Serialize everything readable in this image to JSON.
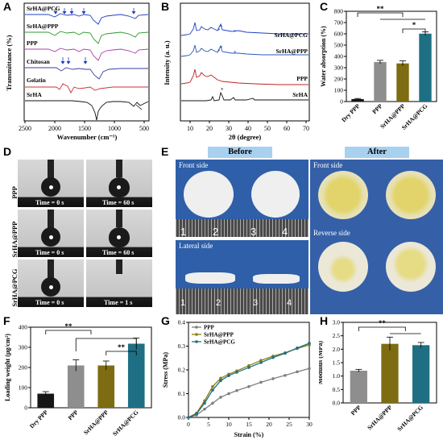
{
  "panels": {
    "A": {
      "label": "A"
    },
    "B": {
      "label": "B"
    },
    "C": {
      "label": "C"
    },
    "D": {
      "label": "D"
    },
    "E": {
      "label": "E"
    },
    "F": {
      "label": "F"
    },
    "G": {
      "label": "G"
    },
    "H": {
      "label": "H"
    }
  },
  "chart_data": [
    {
      "id": "A",
      "type": "line",
      "xlabel": "Wavenumber (cm⁻¹)",
      "ylabel": "Transmittance (%)",
      "x_ticks": [
        "2500",
        "2000",
        "1500",
        "1000",
        "500"
      ],
      "xlim": [
        2500,
        400
      ],
      "x_reversed": true,
      "series": [
        {
          "name": "SrHA@PCG",
          "color": "#1f3fbf"
        },
        {
          "name": "SrHA@PPP",
          "color": "#2a9a2a"
        },
        {
          "name": "PPP",
          "color": "#b03da8"
        },
        {
          "name": "Chitosan",
          "color": "#3a3f9f"
        },
        {
          "name": "Gelatin",
          "color": "#d03030"
        },
        {
          "name": "SrHA",
          "color": "#111111"
        }
      ]
    },
    {
      "id": "B",
      "type": "line",
      "xlabel": "2θ (degree)",
      "ylabel": "Intensity (a. u.)",
      "x_ticks": [
        "10",
        "20",
        "30",
        "40",
        "50",
        "60",
        "70"
      ],
      "xlim": [
        5,
        70
      ],
      "series": [
        {
          "name": "SrHA@PCG",
          "color": "#1f3fbf"
        },
        {
          "name": "SrHA@PPP",
          "color": "#2a5ab0"
        },
        {
          "name": "PPP",
          "color": "#c02020"
        },
        {
          "name": "SrHA",
          "color": "#111111"
        }
      ]
    },
    {
      "id": "C",
      "type": "bar",
      "categories": [
        "Dry PPP",
        "PPP",
        "SrHA@PPP",
        "SrHA@PCG"
      ],
      "values": [
        22,
        350,
        338,
        602
      ],
      "errors": [
        5,
        15,
        22,
        15
      ],
      "colors": [
        "#161616",
        "#8e8e8e",
        "#7d6c12",
        "#1e6f83"
      ],
      "ylabel": "Water absorption (%)",
      "ylim": [
        0,
        800
      ],
      "y_ticks": [
        "0",
        "100",
        "200",
        "300",
        "400",
        "500",
        "600",
        "700",
        "800"
      ],
      "significance": [
        "**",
        "*"
      ]
    },
    {
      "id": "F",
      "type": "bar",
      "categories": [
        "Dry PPP",
        "PPP",
        "SrHA@PPP",
        "SrHA@PCG"
      ],
      "values": [
        70,
        210,
        210,
        318
      ],
      "errors": [
        10,
        28,
        22,
        28
      ],
      "colors": [
        "#161616",
        "#8e8e8e",
        "#7d6c12",
        "#1e6f83"
      ],
      "ylabel": "Loading weight (μg/cm²)",
      "ylim": [
        0,
        400
      ],
      "y_ticks": [
        "0",
        "100",
        "200",
        "300",
        "400"
      ],
      "significance": [
        "**",
        "**"
      ]
    },
    {
      "id": "G",
      "type": "line",
      "xlabel": "Strain (%)",
      "ylabel": "Stress (MPa)",
      "xlim": [
        0,
        30
      ],
      "ylim": [
        0,
        0.4
      ],
      "x_ticks": [
        "0",
        "5",
        "10",
        "15",
        "20",
        "25",
        "30"
      ],
      "y_ticks": [
        "0.0",
        "0.1",
        "0.2",
        "0.3",
        "0.4"
      ],
      "series": [
        {
          "name": "PPP",
          "color": "#808080",
          "x": [
            0,
            2,
            4,
            6,
            8,
            10,
            12,
            15,
            18,
            21,
            24,
            27,
            30
          ],
          "y": [
            0,
            0.01,
            0.035,
            0.06,
            0.085,
            0.1,
            0.113,
            0.13,
            0.148,
            0.163,
            0.177,
            0.192,
            0.206
          ]
        },
        {
          "name": "SrHA@PPP",
          "color": "#8f7f10",
          "x": [
            0,
            2,
            4,
            6,
            8,
            10,
            12,
            15,
            18,
            21,
            24,
            27,
            30
          ],
          "y": [
            0,
            0.018,
            0.07,
            0.13,
            0.165,
            0.182,
            0.196,
            0.218,
            0.24,
            0.258,
            0.272,
            0.29,
            0.305
          ]
        },
        {
          "name": "SrHA@PCG",
          "color": "#1e6f83",
          "x": [
            0,
            2,
            4,
            6,
            8,
            10,
            12,
            15,
            18,
            21,
            24,
            27,
            30
          ],
          "y": [
            0,
            0.015,
            0.06,
            0.115,
            0.155,
            0.176,
            0.19,
            0.21,
            0.231,
            0.252,
            0.27,
            0.292,
            0.312
          ]
        }
      ]
    },
    {
      "id": "H",
      "type": "bar",
      "categories": [
        "PPP",
        "SrHA@PPP",
        "SrHA@PCG"
      ],
      "values": [
        1.2,
        2.2,
        2.15
      ],
      "errors": [
        0.05,
        0.25,
        0.1
      ],
      "colors": [
        "#8e8e8e",
        "#7d6c12",
        "#1e6f83"
      ],
      "ylabel": "Modulus (MPa)",
      "ylim": [
        0,
        3.0
      ],
      "y_ticks": [
        "0.0",
        "0.5",
        "1.0",
        "1.5",
        "2.0",
        "2.5",
        "3.0"
      ],
      "significance": [
        "**"
      ]
    }
  ],
  "panel_d": {
    "rows": [
      "PPP",
      "SrHA@PPP",
      "SrHA@PCG"
    ],
    "captions": [
      [
        "Time = 0 s",
        "Time = 60 s"
      ],
      [
        "Time = 0 s",
        "Time = 60 s"
      ],
      [
        "Time = 0 s",
        "Time = 1 s"
      ]
    ]
  },
  "panel_e": {
    "before": "Before",
    "after": "After",
    "front_side": "Front side",
    "lateral_side": "Lateral side",
    "reverse_side": "Reverse side",
    "ruler_numbers": [
      "1",
      "2",
      "3",
      "4"
    ]
  }
}
